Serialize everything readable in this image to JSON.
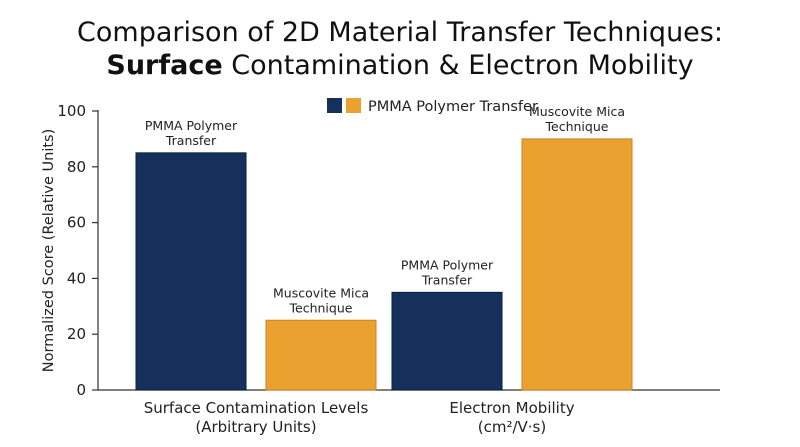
{
  "chart_data": {
    "type": "bar",
    "title_line1": "Comparison of 2D Material Transfer Techniques:",
    "title_line2_bold": "Surface",
    "title_line2_rest": " Contamination & Electron Mobility",
    "ylabel": "Normalized Score (Relative Units)",
    "ylim": [
      0,
      100
    ],
    "yticks": [
      0,
      20,
      40,
      60,
      80,
      100
    ],
    "legend_label": "PMMA Polymer Transfer",
    "legend_placement": "top-center",
    "grid": false,
    "categories": [
      [
        "Surface Contamination Levels",
        "(Arbitrary Units)"
      ],
      [
        "Electron Mobility",
        "(cm²/V·s)"
      ]
    ],
    "series": [
      {
        "labels": [
          "PMMA Polymer",
          "Transfer"
        ],
        "color": "#15305b",
        "values": [
          85,
          35
        ]
      },
      {
        "labels": [
          "Muscovite Mica",
          "Technique"
        ],
        "color": "#eba12f",
        "values": [
          25,
          90
        ]
      }
    ]
  }
}
